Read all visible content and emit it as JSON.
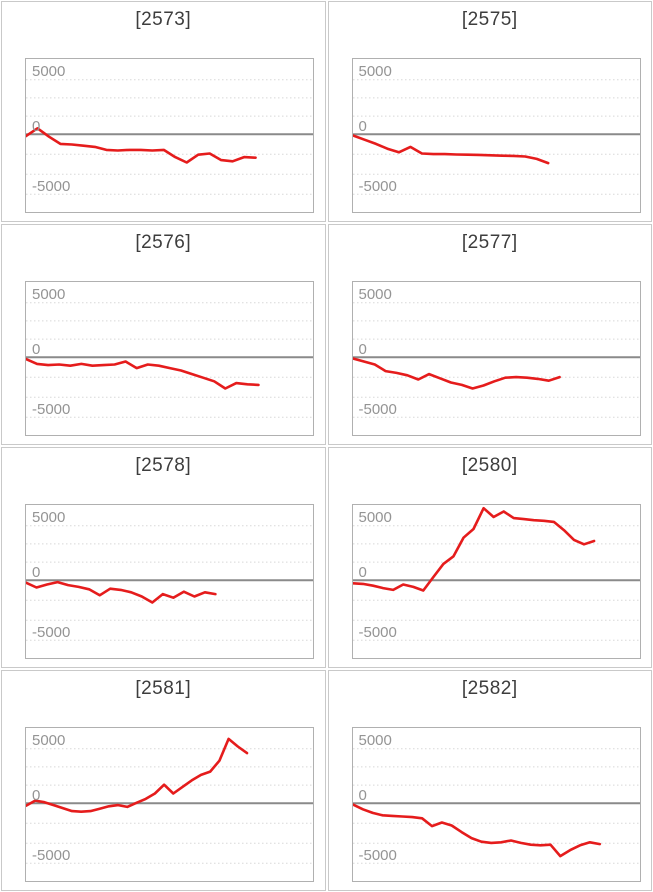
{
  "page": {
    "background": "#ffffff",
    "layout": "2x4 grid of line charts"
  },
  "style": {
    "line_color": "#e51c1c",
    "zero_line_color": "#8a8a8a",
    "grid_color": "#d8d8d8",
    "box_border": "#b0b0b0",
    "cell_border": "#c9c9c9",
    "title_color": "#3d3d3d",
    "label_color": "#949494"
  },
  "axis": {
    "tick_labels": [
      "5000",
      "0",
      "-5000"
    ],
    "tick_values": [
      5000,
      0,
      -5000
    ],
    "gridline_values": [
      5000,
      3333,
      1667,
      0,
      -1667,
      -3333,
      -5000
    ],
    "ylim": [
      -6400,
      6900
    ],
    "grid_style": "dotted",
    "zero_line": "solid"
  },
  "chart_data": [
    {
      "type": "line",
      "title": "[2573]",
      "x_extent": 0.8,
      "values": [
        -150,
        550,
        -200,
        -800,
        -850,
        -950,
        -1050,
        -1300,
        -1350,
        -1300,
        -1300,
        -1350,
        -1300,
        -1900,
        -2350,
        -1700,
        -1600,
        -2150,
        -2250,
        -1900,
        -1950
      ]
    },
    {
      "type": "line",
      "title": "[2575]",
      "x_extent": 0.68,
      "values": [
        -100,
        -450,
        -800,
        -1200,
        -1500,
        -1050,
        -1600,
        -1650,
        -1650,
        -1680,
        -1700,
        -1720,
        -1750,
        -1780,
        -1800,
        -1850,
        -2050,
        -2400
      ]
    },
    {
      "type": "line",
      "title": "[2576]",
      "x_extent": 0.81,
      "values": [
        -150,
        -550,
        -650,
        -600,
        -700,
        -550,
        -700,
        -650,
        -600,
        -350,
        -900,
        -600,
        -700,
        -900,
        -1100,
        -1400,
        -1700,
        -2000,
        -2600,
        -2150,
        -2250,
        -2300
      ]
    },
    {
      "type": "line",
      "title": "[2577]",
      "x_extent": 0.72,
      "values": [
        -100,
        -350,
        -600,
        -1150,
        -1300,
        -1500,
        -1850,
        -1400,
        -1750,
        -2100,
        -2300,
        -2600,
        -2350,
        -2000,
        -1700,
        -1650,
        -1700,
        -1800,
        -1950,
        -1650
      ]
    },
    {
      "type": "line",
      "title": "[2578]",
      "x_extent": 0.66,
      "values": [
        -200,
        -600,
        -350,
        -150,
        -400,
        -550,
        -750,
        -1250,
        -700,
        -800,
        -1000,
        -1350,
        -1850,
        -1150,
        -1450,
        -950,
        -1350,
        -1000,
        -1150
      ]
    },
    {
      "type": "line",
      "title": "[2580]",
      "x_extent": 0.84,
      "values": [
        -250,
        -300,
        -450,
        -650,
        -800,
        -350,
        -550,
        -850,
        300,
        1500,
        2200,
        3900,
        4700,
        6600,
        5800,
        6300,
        5700,
        5600,
        5500,
        5450,
        5350,
        4600,
        3700,
        3300,
        3600
      ]
    },
    {
      "type": "line",
      "title": "[2581]",
      "x_extent": 0.77,
      "values": [
        -200,
        250,
        100,
        -150,
        -400,
        -650,
        -700,
        -650,
        -450,
        -250,
        -150,
        -300,
        50,
        400,
        900,
        1700,
        900,
        1500,
        2100,
        2600,
        2900,
        3900,
        5900,
        5200,
        4600
      ]
    },
    {
      "type": "line",
      "title": "[2582]",
      "x_extent": 0.86,
      "values": [
        -100,
        -500,
        -800,
        -1000,
        -1050,
        -1100,
        -1150,
        -1250,
        -1900,
        -1600,
        -1850,
        -2400,
        -2900,
        -3200,
        -3300,
        -3250,
        -3100,
        -3300,
        -3450,
        -3500,
        -3450,
        -4400,
        -3900,
        -3500,
        -3250,
        -3400
      ]
    }
  ]
}
